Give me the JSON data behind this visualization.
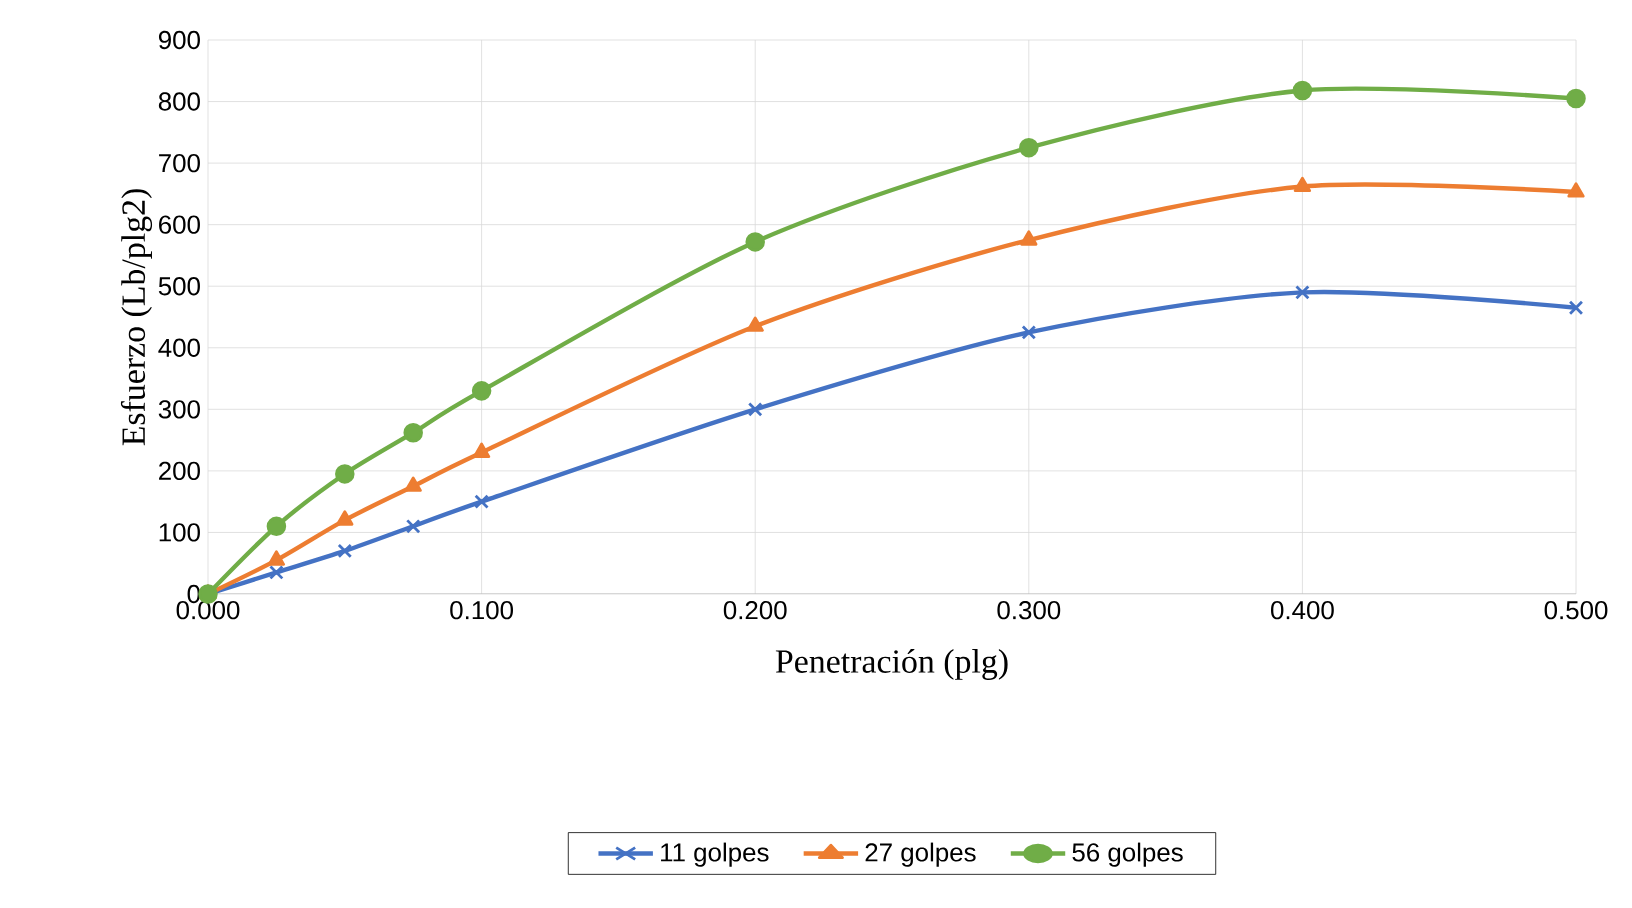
{
  "chart_data": {
    "type": "line",
    "xlabel": "Penetración (plg)",
    "ylabel": "Esfuerzo (Lb/plg2)",
    "x": [
      0,
      0.025,
      0.05,
      0.075,
      0.1,
      0.2,
      0.3,
      0.4,
      0.5
    ],
    "series": [
      {
        "name": "11 golpes",
        "color": "#4472c4",
        "marker": "cross",
        "values": [
          0,
          35,
          70,
          110,
          150,
          300,
          425,
          490,
          465
        ]
      },
      {
        "name": "27 golpes",
        "color": "#ed7d31",
        "marker": "triangle",
        "values": [
          0,
          55,
          120,
          175,
          230,
          435,
          575,
          662,
          653
        ]
      },
      {
        "name": "56 golpes",
        "color": "#70ad47",
        "marker": "circle",
        "values": [
          0,
          110,
          195,
          262,
          330,
          572,
          725,
          818,
          805
        ]
      }
    ],
    "xlim": [
      0,
      0.5
    ],
    "xticks": [
      {
        "value": 0,
        "label": "0.000"
      },
      {
        "value": 0.1,
        "label": "0.100"
      },
      {
        "value": 0.2,
        "label": "0.200"
      },
      {
        "value": 0.3,
        "label": "0.300"
      },
      {
        "value": 0.4,
        "label": "0.400"
      },
      {
        "value": 0.5,
        "label": "0.500"
      }
    ],
    "ylim": [
      0,
      900
    ],
    "yticks": [
      0,
      100,
      200,
      300,
      400,
      500,
      600,
      700,
      800,
      900
    ],
    "grid": true,
    "legend": "bottom",
    "line_style": "solid"
  }
}
